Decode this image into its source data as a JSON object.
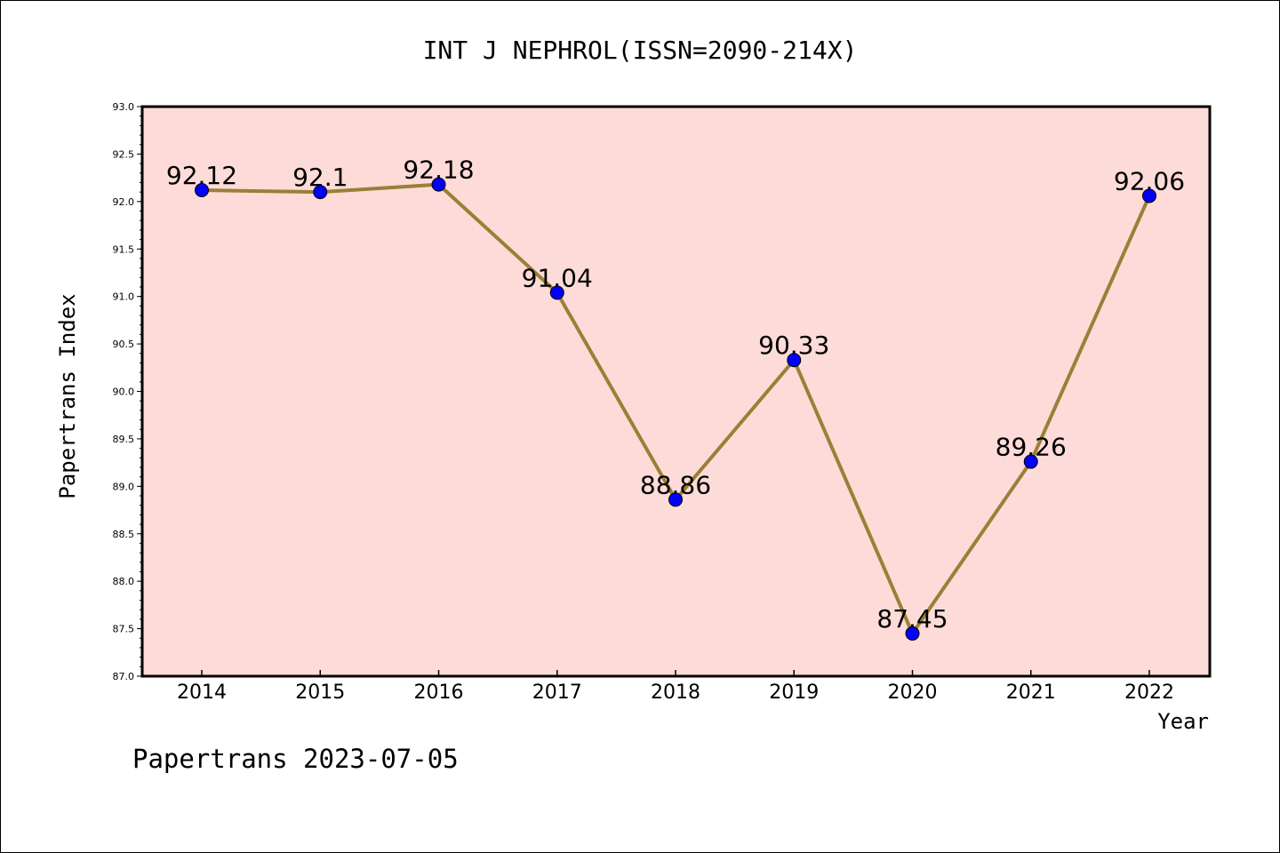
{
  "chart_data": {
    "type": "line",
    "title": "INT J NEPHROL(ISSN=2090-214X)",
    "xlabel": "Year",
    "ylabel": "Papertrans Index",
    "x": [
      "2014",
      "2015",
      "2016",
      "2017",
      "2018",
      "2019",
      "2020",
      "2021",
      "2022"
    ],
    "series": [
      {
        "values": [
          92.12,
          92.1,
          92.18,
          91.04,
          88.86,
          90.33,
          87.45,
          89.26,
          92.06
        ],
        "labels": [
          "92.12",
          "92.1",
          "92.18",
          "91.04",
          "88.86",
          "90.33",
          "87.45",
          "89.26",
          "92.06"
        ]
      }
    ],
    "ylim": [
      87.0,
      93.0
    ],
    "yticks": [
      "87.0",
      "87.5",
      "88.0",
      "88.5",
      "89.0",
      "89.5",
      "90.0",
      "90.5",
      "91.0",
      "91.5",
      "92.0",
      "92.5",
      "93.0"
    ],
    "grid": false,
    "colors": {
      "plot_background": "#fddbd8",
      "line": "#9a8037",
      "marker": "#0000ff"
    }
  },
  "footer": "Papertrans 2023-07-05"
}
